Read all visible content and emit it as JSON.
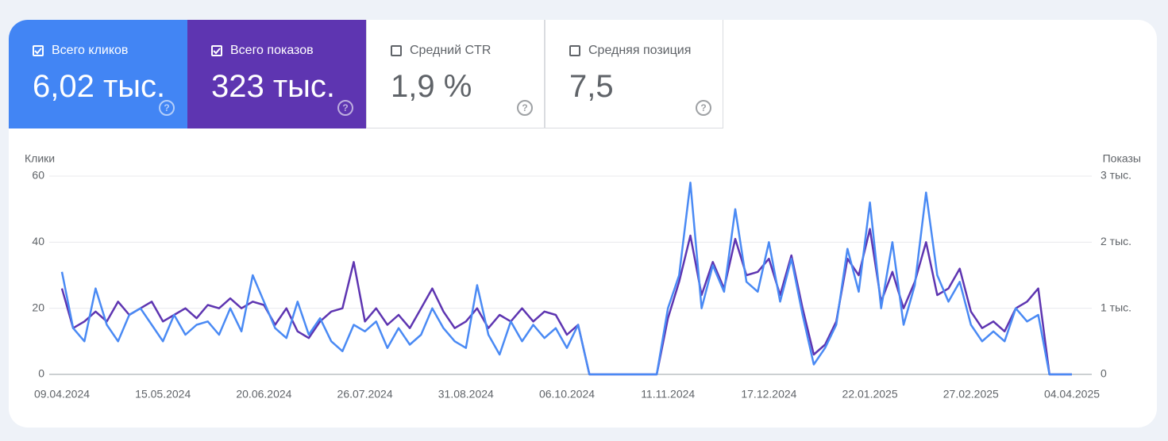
{
  "cards": [
    {
      "label": "Всего кликов",
      "value": "6,02 тыс.",
      "checked": true,
      "color": "#4285f4"
    },
    {
      "label": "Всего показов",
      "value": "323 тыс.",
      "checked": true,
      "color": "#5e35b1"
    },
    {
      "label": "Средний CTR",
      "value": "1,9 %",
      "checked": false
    },
    {
      "label": "Средняя позиция",
      "value": "7,5",
      "checked": false
    }
  ],
  "chart_data": {
    "type": "line",
    "ylabel": "Клики",
    "y2label": "Показы",
    "x": [
      "09.04.2024",
      "13.04.2024",
      "17.04.2024",
      "21.04.2024",
      "25.04.2024",
      "29.04.2024",
      "03.05.2024",
      "07.05.2024",
      "11.05.2024",
      "15.05.2024",
      "19.05.2024",
      "23.05.2024",
      "27.05.2024",
      "31.05.2024",
      "04.06.2024",
      "08.06.2024",
      "12.06.2024",
      "16.06.2024",
      "20.06.2024",
      "24.06.2024",
      "28.06.2024",
      "02.07.2024",
      "06.07.2024",
      "10.07.2024",
      "14.07.2024",
      "18.07.2024",
      "22.07.2024",
      "26.07.2024",
      "30.07.2024",
      "03.08.2024",
      "07.08.2024",
      "11.08.2024",
      "15.08.2024",
      "19.08.2024",
      "23.08.2024",
      "27.08.2024",
      "31.08.2024",
      "04.09.2024",
      "08.09.2024",
      "12.09.2024",
      "16.09.2024",
      "20.09.2024",
      "24.09.2024",
      "28.09.2024",
      "02.10.2024",
      "06.10.2024",
      "10.10.2024",
      "14.10.2024",
      "18.10.2024",
      "22.10.2024",
      "26.10.2024",
      "30.10.2024",
      "03.11.2024",
      "07.11.2024",
      "11.11.2024",
      "15.11.2024",
      "19.11.2024",
      "23.11.2024",
      "27.11.2024",
      "01.12.2024",
      "05.12.2024",
      "09.12.2024",
      "13.12.2024",
      "17.12.2024",
      "21.12.2024",
      "25.12.2024",
      "29.12.2024",
      "02.01.2025",
      "06.01.2025",
      "10.01.2025",
      "14.01.2025",
      "18.01.2025",
      "22.01.2025",
      "26.01.2025",
      "30.01.2025",
      "03.02.2025",
      "07.02.2025",
      "11.02.2025",
      "15.02.2025",
      "19.02.2025",
      "23.02.2025",
      "27.02.2025",
      "03.03.2025",
      "07.03.2025",
      "11.03.2025",
      "15.03.2025",
      "19.03.2025",
      "23.03.2025",
      "27.03.2025",
      "31.03.2025",
      "04.04.2025"
    ],
    "xticks": [
      "09.04.2024",
      "15.05.2024",
      "20.06.2024",
      "26.07.2024",
      "31.08.2024",
      "06.10.2024",
      "11.11.2024",
      "17.12.2024",
      "22.01.2025",
      "27.02.2025",
      "04.04.2025"
    ],
    "ylim": [
      0,
      60
    ],
    "yticks": [
      0,
      20,
      40,
      60
    ],
    "y2lim": [
      0,
      3000
    ],
    "y2ticks": [
      0,
      {
        "value": 1000,
        "label": "1 тыс."
      },
      {
        "value": 2000,
        "label": "2 тыс."
      },
      {
        "value": 3000,
        "label": "3 тыс."
      }
    ],
    "grid": true,
    "series": [
      {
        "name": "Клики",
        "color": "#4a8af4",
        "values": [
          31,
          14,
          10,
          26,
          15,
          10,
          18,
          20,
          15,
          10,
          18,
          12,
          15,
          16,
          12,
          20,
          13,
          30,
          22,
          14,
          11,
          22,
          12,
          17,
          10,
          7,
          15,
          13,
          16,
          8,
          14,
          9,
          12,
          20,
          14,
          10,
          8,
          27,
          12,
          6,
          16,
          10,
          15,
          11,
          14,
          8,
          15,
          0,
          0,
          0,
          0,
          0,
          0,
          0,
          20,
          30,
          58,
          20,
          33,
          25,
          50,
          28,
          25,
          40,
          22,
          35,
          18,
          3,
          8,
          15,
          38,
          25,
          52,
          20,
          40,
          15,
          27,
          55,
          30,
          22,
          28,
          15,
          10,
          13,
          10,
          20,
          16,
          18,
          0,
          0,
          0
        ]
      },
      {
        "name": "Показы",
        "color": "#5e35b1",
        "axis": "y2",
        "values": [
          1300,
          700,
          800,
          950,
          800,
          1100,
          900,
          1000,
          1100,
          800,
          900,
          1000,
          850,
          1050,
          1000,
          1150,
          1000,
          1100,
          1050,
          750,
          1000,
          650,
          550,
          800,
          950,
          1000,
          1700,
          800,
          1000,
          750,
          900,
          700,
          1000,
          1300,
          950,
          700,
          800,
          1000,
          700,
          900,
          800,
          1000,
          800,
          950,
          900,
          600,
          750,
          0,
          0,
          0,
          0,
          0,
          0,
          0,
          850,
          1400,
          2100,
          1200,
          1700,
          1300,
          2050,
          1500,
          1550,
          1750,
          1200,
          1800,
          1000,
          300,
          450,
          800,
          1750,
          1500,
          2200,
          1100,
          1550,
          1000,
          1400,
          2000,
          1200,
          1300,
          1600,
          950,
          700,
          800,
          650,
          1000,
          1100,
          1300,
          0,
          0,
          0
        ]
      }
    ]
  }
}
